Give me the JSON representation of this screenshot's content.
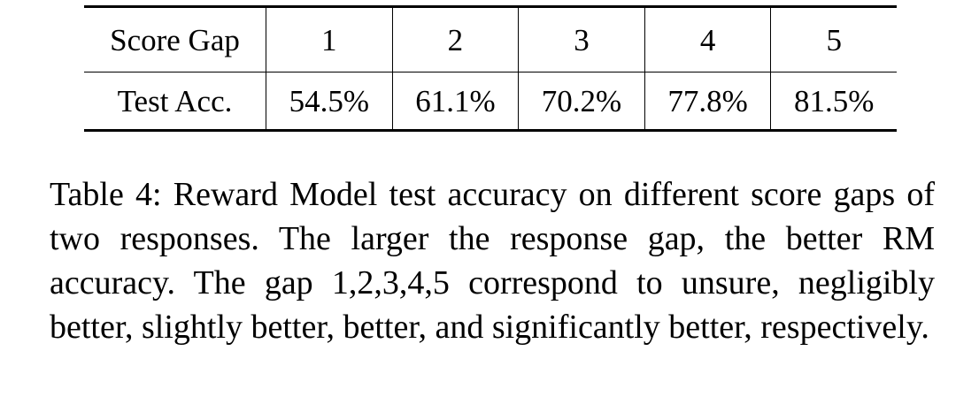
{
  "table": {
    "header_label": "Score Gap",
    "row_label": "Test Acc.",
    "gaps": [
      "1",
      "2",
      "3",
      "4",
      "5"
    ],
    "accuracies": [
      "54.5%",
      "61.1%",
      "70.2%",
      "77.8%",
      "81.5%"
    ]
  },
  "caption": {
    "lines": [
      "Table 4: Reward Model test accuracy on different score",
      "gaps of two responses.  The larger the response gap,",
      "the better RM accuracy. The gap 1,2,3,4,5 correspond",
      "to unsure, negligibly better, slightly better, better, and",
      "significantly better, respectively."
    ]
  }
}
